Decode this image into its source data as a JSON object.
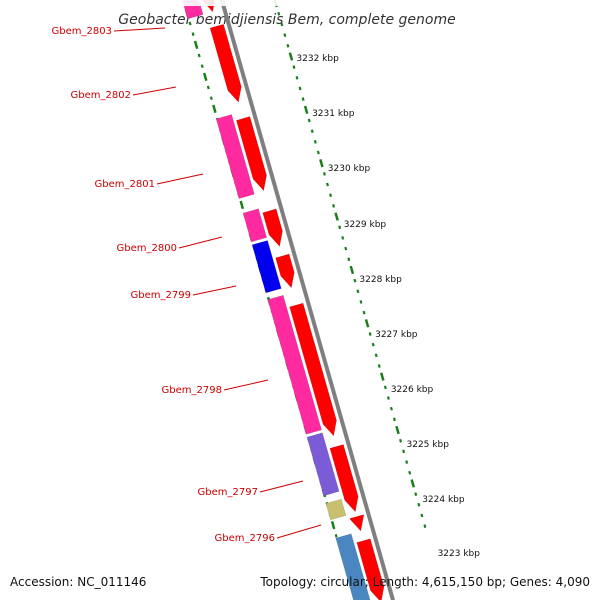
{
  "title": "Geobacter bemidjiensis Bem, complete genome",
  "footer": {
    "accession": "Accession: NC_011146",
    "summary": "Topology: circular; Length: 4,615,150 bp; Genes: 4,090"
  },
  "colors": {
    "backbone": "#7f7f7f",
    "cds_forward": "#ff0000",
    "tick": "#1a7f1a",
    "label": "#cc0000"
  },
  "scale_labels": [
    "3232 kbp",
    "3231 kbp",
    "3230 kbp",
    "3229 kbp",
    "3228 kbp",
    "3227 kbp",
    "3226 kbp",
    "3225 kbp",
    "3224 kbp",
    "3223 kbp"
  ],
  "gene_labels": [
    "Gbem_2803",
    "Gbem_2802",
    "Gbem_2801",
    "Gbem_2800",
    "Gbem_2799",
    "Gbem_2798",
    "Gbem_2797",
    "Gbem_2796"
  ],
  "legend_categories": [
    {
      "color": "#ff2aa0"
    },
    {
      "color": "#0000ee"
    },
    {
      "color": "#7b5cd6"
    },
    {
      "color": "#c8c06e"
    },
    {
      "color": "#4a87c0"
    }
  ]
}
